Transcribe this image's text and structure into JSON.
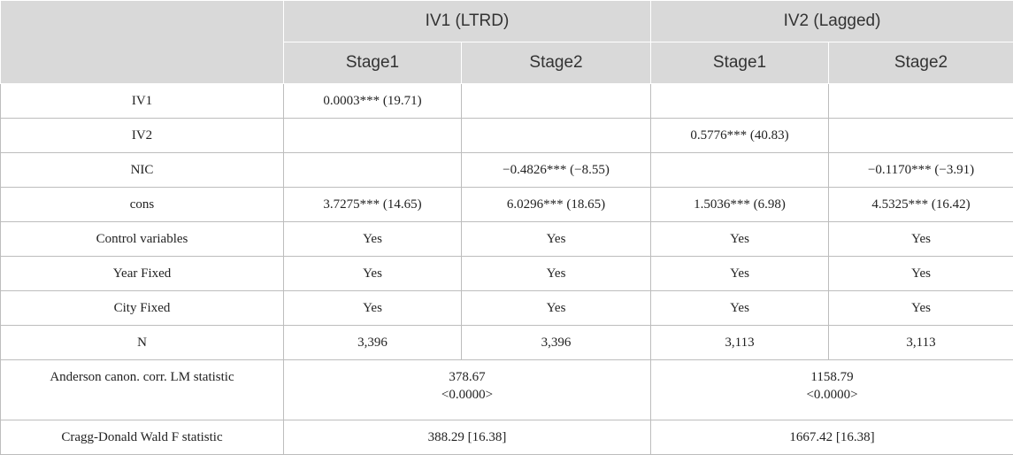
{
  "header": {
    "group1": "IV1 (LTRD)",
    "group2": "IV2 (Lagged)",
    "stages": [
      "Stage1",
      "Stage2",
      "Stage1",
      "Stage2"
    ]
  },
  "rows": [
    {
      "label": "IV1",
      "cells": [
        "0.0003*** (19.71)",
        "",
        "",
        ""
      ]
    },
    {
      "label": "IV2",
      "cells": [
        "",
        "",
        "0.5776*** (40.83)",
        ""
      ]
    },
    {
      "label": "NIC",
      "cells": [
        "",
        "−0.4826*** (−8.55)",
        "",
        "−0.1170*** (−3.91)"
      ]
    },
    {
      "label": "cons",
      "cells": [
        "3.7275*** (14.65)",
        "6.0296*** (18.65)",
        "1.5036*** (6.98)",
        "4.5325*** (16.42)"
      ]
    },
    {
      "label": "Control variables",
      "cells": [
        "Yes",
        "Yes",
        "Yes",
        "Yes"
      ]
    },
    {
      "label": "Year Fixed",
      "cells": [
        "Yes",
        "Yes",
        "Yes",
        "Yes"
      ]
    },
    {
      "label": "City Fixed",
      "cells": [
        "Yes",
        "Yes",
        "Yes",
        "Yes"
      ]
    },
    {
      "label": "N",
      "cells": [
        "3,396",
        "3,396",
        "3,113",
        "3,113"
      ]
    }
  ],
  "anderson": {
    "label": "Anderson canon. corr. LM statistic",
    "iv1_value": "378.67",
    "iv1_p": "<0.0000>",
    "iv2_value": "1158.79",
    "iv2_p": "<0.0000>"
  },
  "cragg": {
    "label": "Cragg-Donald Wald F statistic",
    "iv1": "388.29 [16.38]",
    "iv2": "1667.42 [16.38]"
  }
}
